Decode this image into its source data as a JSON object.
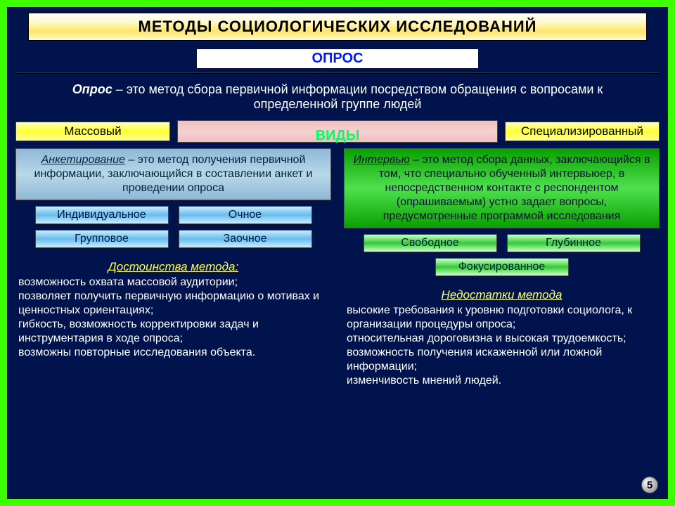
{
  "title": "МЕТОДЫ СОЦИОЛОГИЧЕСКИХ ИССЛЕДОВАНИЙ",
  "sub_banner": "ОПРОС",
  "definition_term": "Опрос",
  "definition_text": " – это метод сбора первичной информации посредством обращения с вопросами к определенной группе людей",
  "kind_left": "Массовый",
  "kind_label": "ВИДЫ",
  "kind_right": "Специализированный",
  "left": {
    "term": "Анкетирование",
    "text": " – это метод получения первичной информации, заключающийся в составлении анкет и проведении опроса",
    "chip1a": "Индивидуальное",
    "chip1b": "Очное",
    "chip2a": "Групповое",
    "chip2b": "Заочное"
  },
  "right": {
    "term": "Интервью",
    "text": " – это метод сбора данных, заключающийся в том, что специально обученный интервьюер, в непосредственном контакте с респондентом (опрашиваемым) устно задает вопросы, предусмотренные программой исследования",
    "chip1a": "Свободное",
    "chip1b": "Глубинное",
    "chip2": "Фокусированное"
  },
  "merits": {
    "title": "Достоинства метода:",
    "items": "возможность охвата массовой аудитории;\nпозволяет получить первичную информацию о мотивах и ценностных ориентациях;\nгибкость, возможность корректировки задач и инструментария в ходе опроса;\nвозможны повторные исследования объекта."
  },
  "demerits": {
    "title": "Недостатки метода",
    "items": "высокие требования к уровню подготовки социолога, к организации процедуры опроса;\nотносительная дороговизна и высокая трудоемкость;\nвозможность получения искаженной или ложной информации;\nизменчивость мнений людей."
  },
  "slide_number": "5",
  "colors": {
    "bg": "#00134d",
    "border": "#3cff00",
    "title_grad": [
      "#ffffff",
      "#fff9cc",
      "#ffe566"
    ],
    "accent_blue": "#0019ff",
    "accent_green": "#00ff60",
    "yellow_text": "#ffff33"
  }
}
